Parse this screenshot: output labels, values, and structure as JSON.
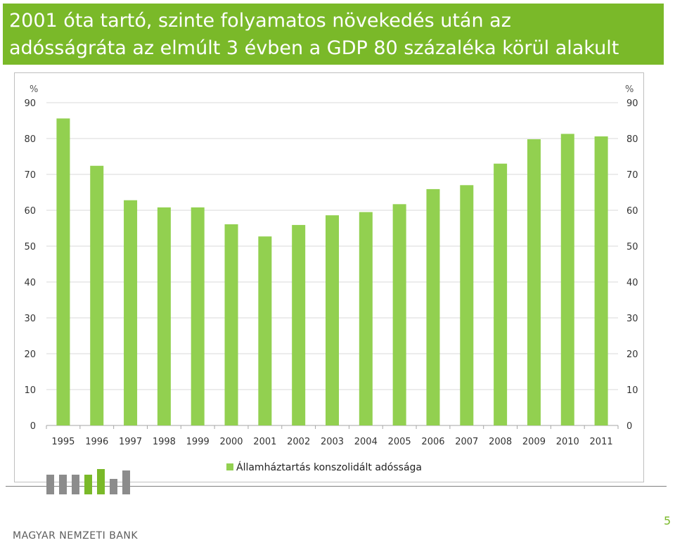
{
  "title": {
    "line1": "2001 óta tartó, szinte folyamatos növekedés után az",
    "line2": "adósságráta az elmúlt 3 évben a GDP 80 százaléka körül alakult"
  },
  "colors": {
    "accent": "#7ab929",
    "bar": "#92d050",
    "axis_text": "#333333",
    "grid": "#d9d9d9"
  },
  "chart_data": {
    "type": "bar",
    "categories": [
      "1995",
      "1996",
      "1997",
      "1998",
      "1999",
      "2000",
      "2001",
      "2002",
      "2003",
      "2004",
      "2005",
      "2006",
      "2007",
      "2008",
      "2009",
      "2010",
      "2011"
    ],
    "series": [
      {
        "name": "Államháztartás konszolidált adóssága",
        "values": [
          85.6,
          72.4,
          62.8,
          60.8,
          60.8,
          56.1,
          52.7,
          55.9,
          58.6,
          59.5,
          61.7,
          65.9,
          67.0,
          73.0,
          79.8,
          81.3,
          80.6
        ]
      }
    ],
    "ylim": [
      0,
      90
    ],
    "yticks": [
      0,
      10,
      20,
      30,
      40,
      50,
      60,
      70,
      80,
      90
    ],
    "y_unit_left": "%",
    "y_unit_right": "%",
    "grid": true,
    "legend_position": "bottom"
  },
  "footer": {
    "logo_text": "MAGYAR NEMZETI BANK",
    "page_number": "5"
  }
}
